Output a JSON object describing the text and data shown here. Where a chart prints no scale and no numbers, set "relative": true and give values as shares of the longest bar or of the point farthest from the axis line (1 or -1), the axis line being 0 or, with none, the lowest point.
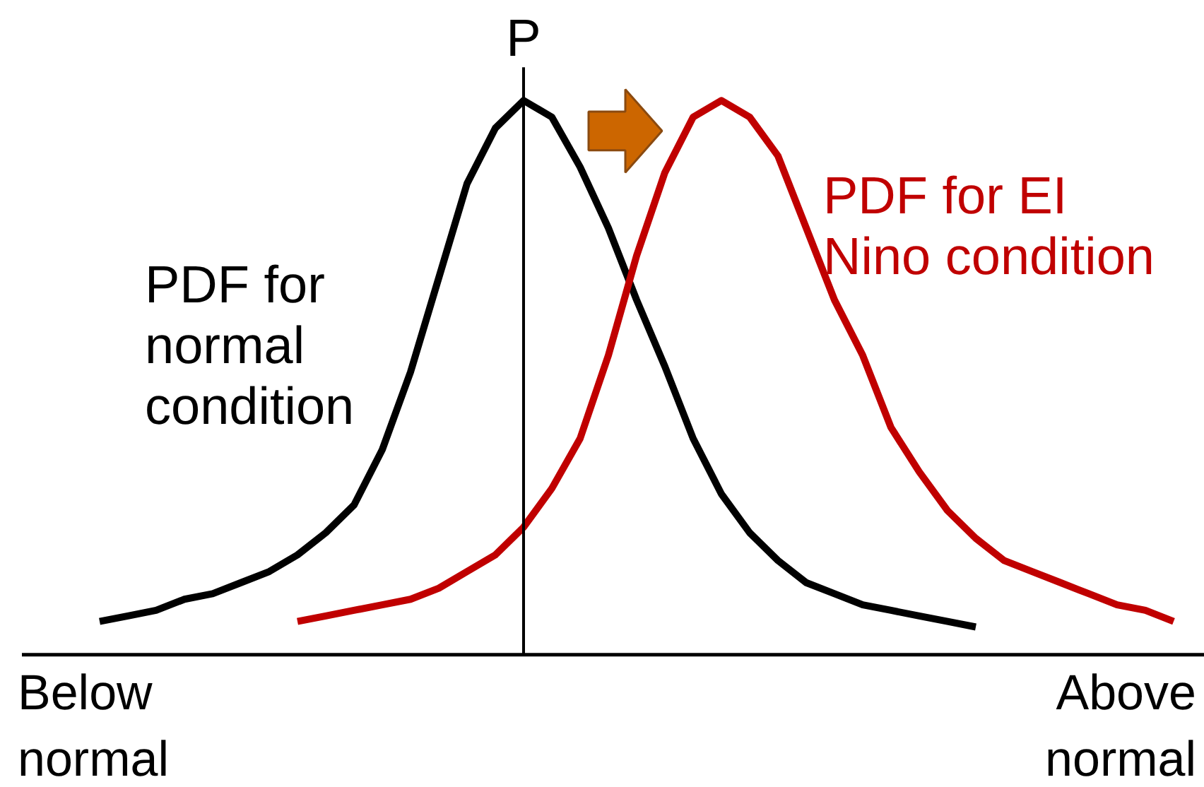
{
  "chart_data": {
    "type": "line",
    "relative": true,
    "categories": [
      null,
      null,
      null,
      null,
      null,
      null,
      null,
      null,
      null,
      null,
      null,
      null,
      null,
      null,
      null,
      null,
      null,
      null,
      null,
      null,
      null,
      null,
      null,
      null,
      null,
      null,
      null,
      null,
      null,
      null,
      null,
      null,
      null,
      null,
      null,
      null,
      null,
      null,
      null
    ],
    "series": [
      {
        "name": "PDF for\nnormal\ncondition",
        "color": "#000000",
        "values": [
          0.06,
          0.07,
          0.08,
          0.1,
          0.11,
          0.13,
          0.15,
          0.18,
          0.22,
          0.27,
          0.37,
          0.51,
          0.68,
          0.85,
          0.95,
          1,
          0.97,
          0.88,
          0.77,
          0.64,
          0.52,
          0.39,
          0.29,
          0.22,
          0.17,
          0.13,
          0.11,
          0.09,
          0.08,
          0.07,
          0.06,
          0.05,
          null,
          null,
          null,
          null,
          null,
          null,
          null
        ]
      },
      {
        "name": "PDF for EI\nNino condition",
        "color": "#c00000",
        "values": [
          null,
          null,
          null,
          null,
          null,
          null,
          null,
          0.06,
          0.07,
          0.08,
          0.09,
          0.1,
          0.12,
          0.15,
          0.18,
          0.23,
          0.3,
          0.39,
          0.54,
          0.72,
          0.87,
          0.97,
          1,
          0.97,
          0.9,
          0.77,
          0.64,
          0.54,
          0.41,
          0.33,
          0.26,
          0.21,
          0.17,
          0.15,
          0.13,
          0.11,
          0.09,
          0.08,
          0.06
        ]
      }
    ],
    "annotations": [
      "P",
      "Below\nnormal",
      "Above\nnormal"
    ],
    "grid": false,
    "marker": "none",
    "line_style": "solid"
  }
}
